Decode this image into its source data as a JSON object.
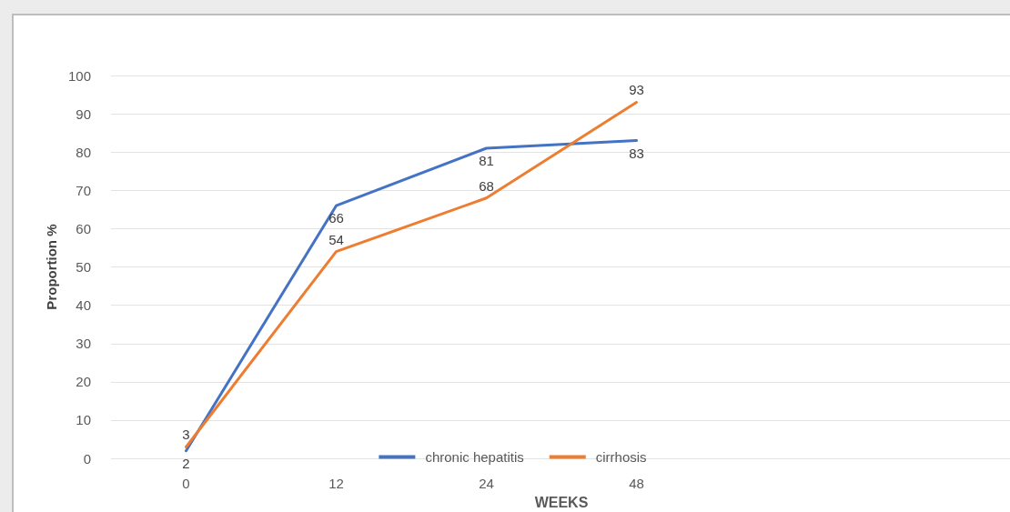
{
  "chart_data": {
    "type": "line",
    "xlabel": "WEEKS",
    "ylabel": "Proportion %",
    "categories": [
      "0",
      "12",
      "24",
      "48",
      null,
      null
    ],
    "series": [
      {
        "name": "chronic hepatitis",
        "color": "#4472c4",
        "values": [
          2,
          66,
          81,
          83,
          null,
          null
        ]
      },
      {
        "name": "cirrhosis",
        "color": "#ed7d31",
        "values": [
          3,
          54,
          68,
          93,
          null,
          null
        ]
      }
    ],
    "ylim": [
      0,
      100
    ],
    "yticks": [
      0,
      10,
      20,
      30,
      40,
      50,
      60,
      70,
      80,
      90,
      100
    ],
    "grid": "y",
    "legend": "bottom",
    "data_labels": true,
    "marker": "none",
    "line_style": "solid"
  }
}
